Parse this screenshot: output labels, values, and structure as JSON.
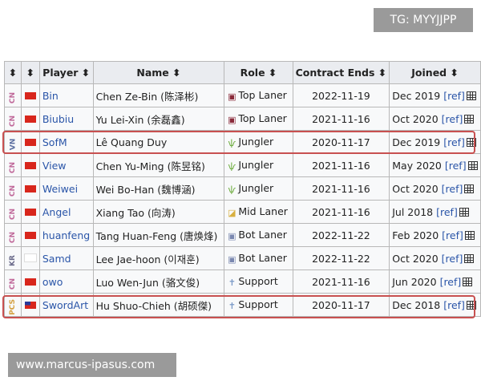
{
  "watermarks": {
    "top": "TG: MYYJJPP",
    "bottom": "www.marcus-ipasus.com"
  },
  "headers": {
    "region": "⬍",
    "flag": "⬍",
    "player": "Player ⬍",
    "name": "Name ⬍",
    "role": "Role ⬍",
    "contract": "Contract Ends ⬍",
    "joined": "Joined ⬍"
  },
  "colors": {
    "CN": "#c0699a",
    "VN": "#5a6ea0",
    "KR": "#6a6a8a",
    "PCS": "#d4a040",
    "highlight": "#c85050"
  },
  "ref_label": "[ref]",
  "rows": [
    {
      "region": "CN",
      "flag": "china-flag",
      "player": "Bin",
      "name": "Chen Ze-Bin (陈泽彬)",
      "role": "Top Laner",
      "role_icon": "top-lane-icon",
      "contract": "2022-11-19",
      "joined": "Dec 2019",
      "highlighted": false
    },
    {
      "region": "CN",
      "flag": "china-flag",
      "player": "Biubiu",
      "name": "Yu Lei-Xin (余磊鑫)",
      "role": "Top Laner",
      "role_icon": "top-lane-icon",
      "contract": "2021-11-16",
      "joined": "Oct 2020",
      "highlighted": false
    },
    {
      "region": "VN",
      "flag": "vietnam-flag",
      "player": "SofM",
      "name": "Lê Quang Duy",
      "role": "Jungler",
      "role_icon": "jungle-icon",
      "contract": "2020-11-17",
      "joined": "Dec 2019",
      "highlighted": true
    },
    {
      "region": "CN",
      "flag": "china-flag",
      "player": "View",
      "name": "Chen Yu-Ming (陈昱铭)",
      "role": "Jungler",
      "role_icon": "jungle-icon",
      "contract": "2021-11-16",
      "joined": "May 2020",
      "highlighted": false
    },
    {
      "region": "CN",
      "flag": "china-flag",
      "player": "Weiwei",
      "name": "Wei Bo-Han (魏博涵)",
      "role": "Jungler",
      "role_icon": "jungle-icon",
      "contract": "2021-11-16",
      "joined": "Oct 2020",
      "highlighted": false
    },
    {
      "region": "CN",
      "flag": "china-flag",
      "player": "Angel",
      "name": "Xiang Tao (向涛)",
      "role": "Mid Laner",
      "role_icon": "mid-lane-icon",
      "contract": "2021-11-16",
      "joined": "Jul 2018",
      "highlighted": false
    },
    {
      "region": "CN",
      "flag": "china-flag",
      "player": "huanfeng",
      "name": "Tang Huan-Feng (唐焕烽)",
      "role": "Bot Laner",
      "role_icon": "bot-lane-icon",
      "contract": "2022-11-22",
      "joined": "Feb 2020",
      "highlighted": false
    },
    {
      "region": "KR",
      "flag": "korea-flag",
      "player": "Samd",
      "name": "Lee Jae-hoon (이재훈)",
      "role": "Bot Laner",
      "role_icon": "bot-lane-icon",
      "contract": "2022-11-22",
      "joined": "Oct 2020",
      "highlighted": false
    },
    {
      "region": "CN",
      "flag": "china-flag",
      "player": "owo",
      "name": "Luo Wen-Jun (骆文俊)",
      "role": "Support",
      "role_icon": "support-icon",
      "contract": "2021-11-16",
      "joined": "Jun 2020",
      "highlighted": false
    },
    {
      "region": "PCS",
      "flag": "taiwan-flag",
      "player": "SwordArt",
      "name": "Hu Shuo-Chieh (胡硕傑)",
      "role": "Support",
      "role_icon": "support-icon",
      "contract": "2020-11-17",
      "joined": "Dec 2018",
      "highlighted": true
    }
  ]
}
